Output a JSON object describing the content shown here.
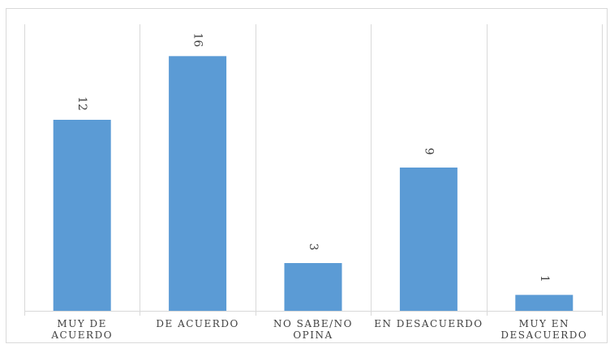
{
  "chart_data": {
    "type": "bar",
    "categories": [
      [
        "MUY DE",
        "ACUERDO"
      ],
      [
        "DE ACUERDO"
      ],
      [
        "NO SABE/NO",
        "OPINA"
      ],
      [
        "EN DESACUERDO"
      ],
      [
        "MUY EN",
        "DESACUERDO"
      ]
    ],
    "values": [
      12,
      16,
      3,
      9,
      1
    ],
    "data_labels": [
      "12",
      "16",
      "3",
      "9",
      "1"
    ],
    "ylim": [
      0,
      18
    ],
    "bar_color": "#5b9bd5",
    "grid": true,
    "legend": "none"
  }
}
